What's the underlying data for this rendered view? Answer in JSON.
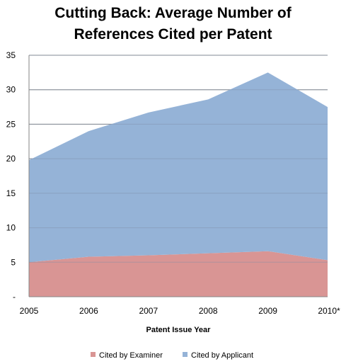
{
  "title_line1": "Cutting Back: Average Number of",
  "title_line2": "References Cited per Patent",
  "chart_data": {
    "type": "area",
    "stacked": true,
    "title": "Cutting Back: Average Number of References Cited per Patent",
    "xlabel": "Patent Issue Year",
    "ylabel": "",
    "categories": [
      "2005",
      "2006",
      "2007",
      "2008",
      "2009",
      "2010*"
    ],
    "ylim": [
      0,
      35
    ],
    "y_ticks": [
      "-",
      "5",
      "10",
      "15",
      "20",
      "25",
      "30",
      "35"
    ],
    "grid": "horizontal",
    "legend_position": "bottom",
    "series": [
      {
        "name": "Cited by Examiner",
        "color": "#d99594",
        "values": [
          5.0,
          5.8,
          6.0,
          6.3,
          6.6,
          5.3
        ]
      },
      {
        "name": "Cited by Applicant",
        "color": "#95b3d7",
        "values": [
          14.8,
          18.2,
          20.7,
          22.3,
          25.9,
          22.2
        ]
      }
    ]
  }
}
